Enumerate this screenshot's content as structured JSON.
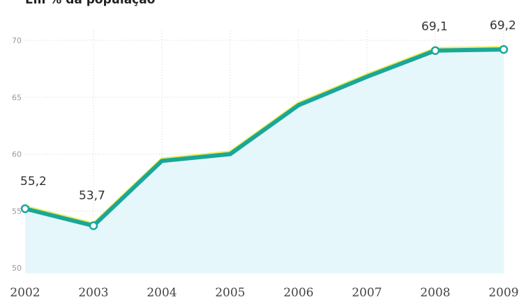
{
  "chart_data": {
    "type": "area",
    "subtitle": "Em % da população",
    "categories": [
      "2002",
      "2003",
      "2004",
      "2005",
      "2006",
      "2007",
      "2008",
      "2009"
    ],
    "series": [
      {
        "values": [
          55.2,
          53.7,
          59.4,
          60.0,
          64.3,
          66.8,
          69.1,
          69.2
        ]
      }
    ],
    "data_labels": {
      "2002": "55,2",
      "2003": "53,7",
      "2008": "69,1",
      "2009": "69,2"
    },
    "y_ticks": [
      "50",
      "55",
      "60",
      "65",
      "70"
    ],
    "ylim": [
      50,
      70
    ],
    "grid": true,
    "colors": {
      "line": "#1aa79a",
      "highlight": "#e9ef5a",
      "fill": "#e6f7fb",
      "grid": "#d0d0d0",
      "marker_fill": "#ffffff"
    }
  }
}
